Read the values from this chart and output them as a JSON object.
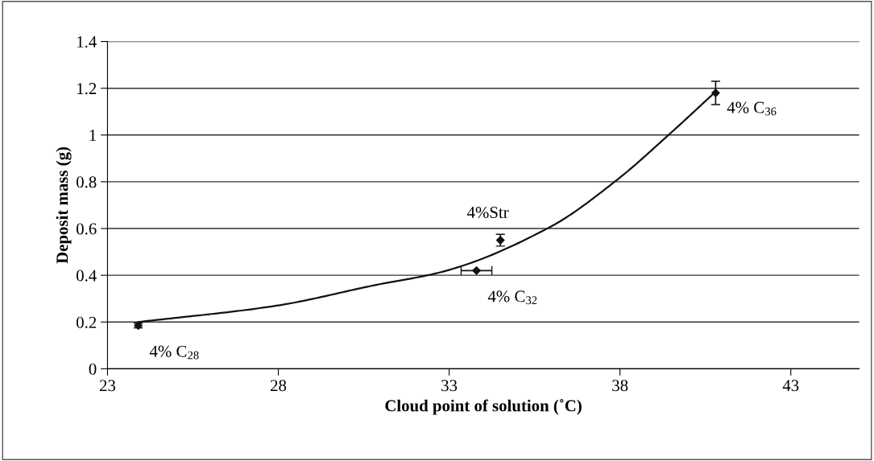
{
  "chart_data": {
    "type": "scatter",
    "xlabel": "Cloud point of solution (˚C)",
    "ylabel": "Deposit mass (g)",
    "xlim": [
      23,
      45
    ],
    "ylim": [
      0,
      1.4
    ],
    "xticks": [
      23,
      28,
      33,
      38,
      43
    ],
    "yticks": [
      0,
      {
        "value": 0.2,
        "label": "0.2"
      },
      {
        "value": 0.4,
        "label": "0.4"
      },
      {
        "value": 0.6,
        "label": "0.6"
      },
      {
        "value": 0.8,
        "label": "0.8"
      },
      1,
      {
        "value": 1.2,
        "label": "1.2"
      },
      {
        "value": 1.4,
        "label": "1.4"
      }
    ],
    "grid": "y",
    "series": [
      {
        "color": "#111111",
        "marker": "diamond",
        "x": [
          23.9,
          33.8,
          34.5,
          40.8
        ],
        "values": [
          0.185,
          0.42,
          0.55,
          1.18
        ],
        "errors": [
          0.01,
          null,
          0.025,
          0.05
        ],
        "xerrors": [
          null,
          0.45,
          null,
          null
        ]
      },
      {
        "type": "line",
        "color": "#111111",
        "line_style": "solid",
        "marker": "none",
        "x": [
          23.9,
          27.95,
          30.8,
          32.8,
          35.96,
          37.93,
          39.42,
          40.76
        ],
        "values": [
          0.2,
          0.27,
          0.357,
          0.415,
          0.607,
          0.81,
          1.0,
          1.18
        ]
      }
    ],
    "annotations": [
      {
        "text": "4% C$_{28}$",
        "x": 23.9,
        "y": 0.185
      },
      {
        "text": "4% C$_{32}$",
        "x": 33.8,
        "y": 0.42
      },
      {
        "text": "4%Str",
        "x": 34.5,
        "y": 0.55
      },
      {
        "text": "4% C$_{36}$",
        "x": 40.8,
        "y": 1.18
      }
    ]
  }
}
